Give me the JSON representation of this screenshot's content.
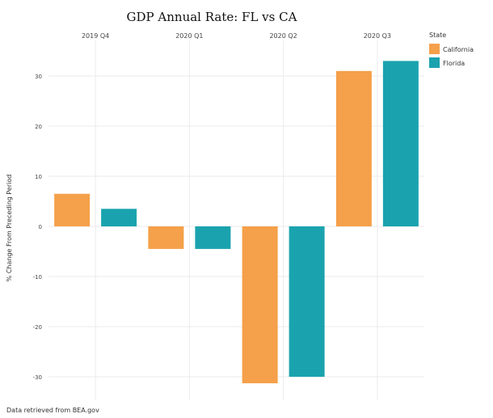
{
  "chart_data": {
    "type": "bar",
    "title": "GDP Annual Rate: FL vs CA",
    "ylabel": "% Change From Preceding Period",
    "categories": [
      "2019 Q4",
      "2020 Q1",
      "2020 Q2",
      "2020 Q3"
    ],
    "series": [
      {
        "name": "California",
        "color": "#F5A04A",
        "values": [
          6.5,
          -4.5,
          -31.3,
          31.0
        ]
      },
      {
        "name": "Florida",
        "color": "#1AA3AE",
        "values": [
          3.5,
          -4.5,
          -30.0,
          33.0
        ]
      }
    ],
    "ylim": [
      -32,
      36
    ],
    "yticks": [
      -30,
      -20,
      -10,
      0,
      10,
      20,
      30
    ],
    "ytick_labels": [
      "-30",
      "-20",
      "-10",
      "0",
      "10",
      "20",
      "30"
    ],
    "legend": {
      "title": "State",
      "placement": "top-right"
    },
    "grid": true,
    "caption": "Data retrieved from BEA.gov"
  }
}
